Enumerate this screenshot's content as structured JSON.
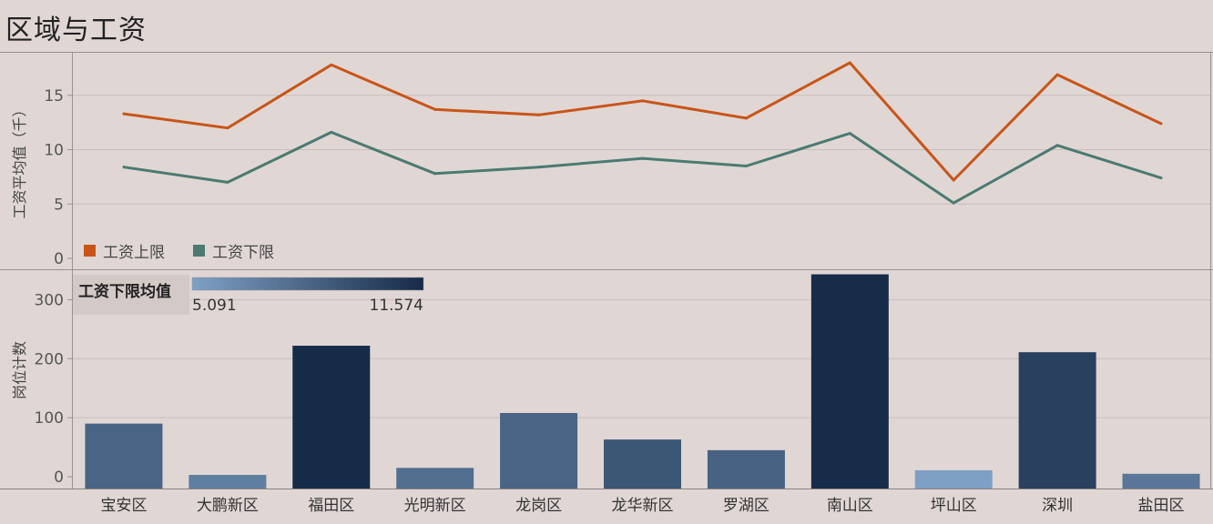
{
  "title": "区域与工资",
  "chart_data": [
    {
      "type": "line",
      "ylabel": "工资平均值（千）",
      "ylim": [
        -1,
        19
      ],
      "yticks": [
        0,
        5,
        10,
        15
      ],
      "categories": [
        "宝安区",
        "大鹏新区",
        "福田区",
        "光明新区",
        "龙岗区",
        "龙华新区",
        "罗湖区",
        "南山区",
        "坪山区",
        "深圳",
        "盐田区"
      ],
      "legend_position": "bottom-left",
      "series": [
        {
          "name": "工资上限",
          "color": "#c95418",
          "values": [
            13.3,
            12.0,
            17.8,
            13.7,
            13.2,
            14.5,
            12.9,
            18.0,
            7.2,
            16.9,
            12.4
          ]
        },
        {
          "name": "工资下限",
          "color": "#4c7a70",
          "values": [
            8.4,
            7.0,
            11.6,
            7.8,
            8.4,
            9.2,
            8.5,
            11.5,
            5.1,
            10.4,
            7.4
          ]
        }
      ]
    },
    {
      "type": "bar",
      "ylabel": "岗位计数",
      "ylim": [
        -20,
        350
      ],
      "yticks": [
        0,
        100,
        200,
        300
      ],
      "categories": [
        "宝安区",
        "大鹏新区",
        "福田区",
        "光明新区",
        "龙岗区",
        "龙华新区",
        "罗湖区",
        "南山区",
        "坪山区",
        "深圳",
        "盐田区"
      ],
      "values": [
        90,
        2,
        222,
        15,
        108,
        63,
        45,
        343,
        11,
        211,
        5
      ],
      "color_values": [
        8.4,
        7.0,
        11.6,
        7.8,
        8.4,
        9.2,
        8.5,
        11.5,
        5.1,
        10.4,
        7.4
      ],
      "colorbar": {
        "title": "工资下限均值",
        "min_label": "5.091",
        "max_label": "11.574",
        "min": 5.091,
        "max": 11.574,
        "color_low": "#7fa0c5",
        "color_high": "#162b47"
      }
    }
  ]
}
